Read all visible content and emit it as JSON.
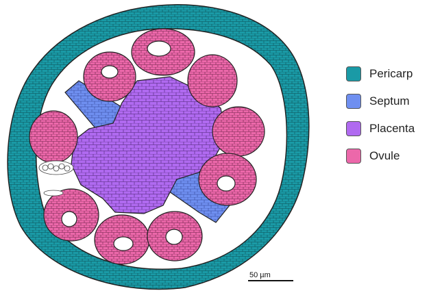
{
  "legend": {
    "items": [
      {
        "label": "Pericarp",
        "color": "#1a9aa6"
      },
      {
        "label": "Septum",
        "color": "#6f8ff0"
      },
      {
        "label": "Placenta",
        "color": "#b06af0"
      },
      {
        "label": "Ovule",
        "color": "#ec68aa"
      }
    ]
  },
  "scale_bar": {
    "label": "50 µm"
  },
  "colors": {
    "pericarp_fill": "#1a9aa6",
    "septum_fill": "#6f8ff0",
    "placenta_fill": "#b06af0",
    "ovule_fill": "#ec68aa",
    "cell_outline": "#222222"
  }
}
